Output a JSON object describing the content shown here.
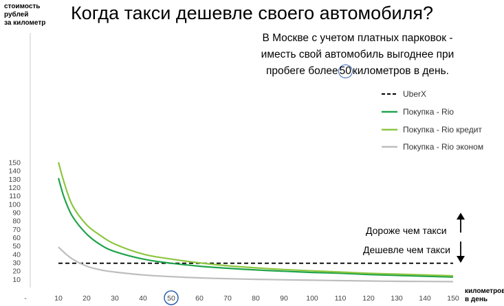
{
  "title": "Когда такси дешевле своего автомобиля?",
  "annotation": {
    "line1": "В Москве с учетом платных парковок -",
    "line2": "иместь свой автомобиль выгоднее при",
    "line3_before": "пробеге более",
    "line3_number": "50",
    "line3_after": "километров в день."
  },
  "y_axis_label": [
    "стоимость",
    "рублей",
    "за километр"
  ],
  "x_axis_label": [
    "километров",
    "в день"
  ],
  "band_labels": {
    "above": "Дороже чем такси",
    "below": "Дешевле чем такси"
  },
  "colors": {
    "uberx": "#000000",
    "rio": "#1fa34a",
    "rio_credit": "#8cc63f",
    "rio_econom": "#bdbdbd",
    "highlight_circle": "#2b5fb0"
  },
  "chart_data": {
    "type": "line",
    "title": "Когда такси дешевле своего автомобиля?",
    "xlabel": "километров в день",
    "ylabel": "стоимость рублей за километр",
    "x_ticks": [
      "-",
      "10",
      "20",
      "30",
      "40",
      "50",
      "60",
      "70",
      "80",
      "90",
      "100",
      "110",
      "120",
      "130",
      "140",
      "150"
    ],
    "y_ticks": [
      10,
      20,
      30,
      40,
      50,
      60,
      70,
      80,
      90,
      100,
      110,
      120,
      130,
      140,
      150
    ],
    "xlim": [
      0,
      150
    ],
    "ylim": [
      0,
      150
    ],
    "grid": false,
    "legend_position": "right",
    "highlighted_x_tick": "50",
    "x": [
      10,
      12,
      15,
      20,
      25,
      30,
      40,
      50,
      60,
      70,
      80,
      90,
      100,
      110,
      120,
      130,
      140,
      150
    ],
    "series": [
      {
        "name": "UberX",
        "style": "dashed",
        "color_key": "uberx",
        "points": [
          [
            10,
            29
          ],
          [
            150,
            29
          ]
        ]
      },
      {
        "name": "Покупка - Rio",
        "style": "solid",
        "color_key": "rio",
        "values": [
          131,
          108,
          85,
          64,
          51,
          43,
          34,
          29,
          25.5,
          23,
          21,
          19.5,
          18,
          17,
          15.5,
          14.5,
          13.5,
          12.5
        ]
      },
      {
        "name": "Покупка - Rio кредит",
        "style": "solid",
        "color_key": "rio_credit",
        "values": [
          150,
          126,
          98,
          75,
          62,
          52,
          40,
          34,
          29.5,
          26,
          23.5,
          21.5,
          20,
          18.5,
          17,
          16,
          15,
          14
        ]
      },
      {
        "name": "Покупка - Rio эконом",
        "style": "solid",
        "color_key": "rio_econom",
        "values": [
          48.5,
          42,
          34,
          25.5,
          21,
          18.5,
          15,
          13,
          11.5,
          10.5,
          9.8,
          9.2,
          8.7,
          8.2,
          7.8,
          7.4,
          7.2,
          7
        ]
      }
    ]
  }
}
